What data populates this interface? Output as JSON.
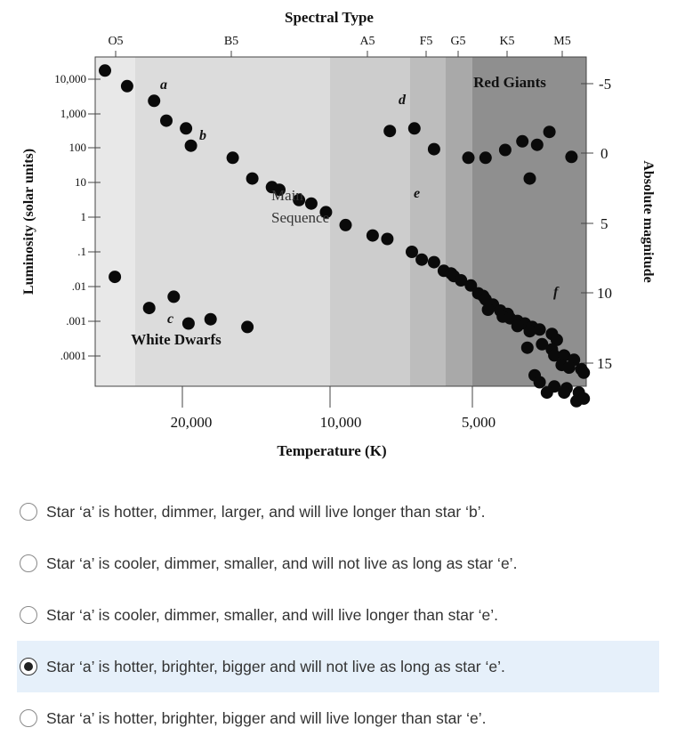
{
  "chart_data": {
    "type": "scatter",
    "title": "Spectral Type",
    "xlabel": "Temperature (K)",
    "ylabel": "Luminosity (solar units)",
    "y2label": "Absolute magnitude",
    "spectral_types": [
      "O5",
      "B5",
      "A5",
      "F5",
      "G5",
      "K5",
      "M5"
    ],
    "temperature_ticks": [
      "20,000",
      "10,000",
      "5,000"
    ],
    "luminosity_ticks": [
      "10,000",
      "1,000",
      "100",
      "10",
      "1",
      ".1",
      ".01",
      ".001",
      ".0001"
    ],
    "magnitude_ticks": [
      "-5",
      "0",
      "5",
      "10",
      "15"
    ],
    "band_colors": [
      "#e8e8e8",
      "#dcdcdc",
      "#cdcdcd",
      "#bdbdbd",
      "#a9a9a9",
      "#8f8f8f"
    ],
    "regions": [
      "Red Giants",
      "Main Sequence",
      "White Dwarfs"
    ],
    "star_labels": [
      "a",
      "b",
      "c",
      "d",
      "e",
      "f"
    ],
    "points": [
      {
        "x": 0.02,
        "y": -0.05
      },
      {
        "x": 0.065,
        "y": 0.04
      },
      {
        "x": 0.12,
        "y": 0.125
      },
      {
        "x": 0.145,
        "y": 0.24
      },
      {
        "x": 0.185,
        "y": 0.285
      },
      {
        "x": 0.195,
        "y": 0.385
      },
      {
        "x": 0.28,
        "y": 0.455
      },
      {
        "x": 0.32,
        "y": 0.575
      },
      {
        "x": 0.36,
        "y": 0.625
      },
      {
        "x": 0.375,
        "y": 0.64
      },
      {
        "x": 0.415,
        "y": 0.7
      },
      {
        "x": 0.44,
        "y": 0.72
      },
      {
        "x": 0.47,
        "y": 0.77
      },
      {
        "x": 0.51,
        "y": 0.845
      },
      {
        "x": 0.565,
        "y": 0.905
      },
      {
        "x": 0.595,
        "y": 0.925
      },
      {
        "x": 0.645,
        "y": 1.0
      },
      {
        "x": 0.665,
        "y": 1.045
      },
      {
        "x": 0.69,
        "y": 1.06
      },
      {
        "x": 0.71,
        "y": 1.11
      },
      {
        "x": 0.725,
        "y": 1.125
      },
      {
        "x": 0.73,
        "y": 1.14
      },
      {
        "x": 0.745,
        "y": 1.165
      },
      {
        "x": 0.765,
        "y": 1.195
      },
      {
        "x": 0.78,
        "y": 1.24
      },
      {
        "x": 0.79,
        "y": 1.255
      },
      {
        "x": 0.795,
        "y": 1.275
      },
      {
        "x": 0.81,
        "y": 1.305
      },
      {
        "x": 0.8,
        "y": 1.335
      },
      {
        "x": 0.825,
        "y": 1.34
      },
      {
        "x": 0.84,
        "y": 1.36
      },
      {
        "x": 0.83,
        "y": 1.375
      },
      {
        "x": 0.845,
        "y": 1.385
      },
      {
        "x": 0.86,
        "y": 1.4
      },
      {
        "x": 0.875,
        "y": 1.415
      },
      {
        "x": 0.86,
        "y": 1.43
      },
      {
        "x": 0.89,
        "y": 1.435
      },
      {
        "x": 0.885,
        "y": 1.46
      },
      {
        "x": 0.905,
        "y": 1.45
      },
      {
        "x": 0.93,
        "y": 1.475
      },
      {
        "x": 0.94,
        "y": 1.51
      },
      {
        "x": 0.91,
        "y": 1.535
      },
      {
        "x": 0.88,
        "y": 1.555
      },
      {
        "x": 0.93,
        "y": 1.565
      },
      {
        "x": 0.935,
        "y": 1.6
      },
      {
        "x": 0.955,
        "y": 1.6
      },
      {
        "x": 0.975,
        "y": 1.625
      },
      {
        "x": 0.95,
        "y": 1.655
      },
      {
        "x": 0.965,
        "y": 1.67
      },
      {
        "x": 0.99,
        "y": 1.68
      },
      {
        "x": 0.995,
        "y": 1.7
      },
      {
        "x": 0.895,
        "y": 1.715
      },
      {
        "x": 0.905,
        "y": 1.755
      },
      {
        "x": 0.935,
        "y": 1.78
      },
      {
        "x": 0.96,
        "y": 1.79
      },
      {
        "x": 0.985,
        "y": 1.815
      },
      {
        "x": 0.955,
        "y": 1.815
      },
      {
        "x": 0.92,
        "y": 1.815
      },
      {
        "x": 0.98,
        "y": 1.865
      },
      {
        "x": 0.995,
        "y": 1.85
      },
      {
        "x": 0.65,
        "y": 0.285
      },
      {
        "x": 0.6,
        "y": 0.3
      },
      {
        "x": 0.69,
        "y": 0.405
      },
      {
        "x": 0.76,
        "y": 0.455
      },
      {
        "x": 0.795,
        "y": 0.455
      },
      {
        "x": 0.835,
        "y": 0.41
      },
      {
        "x": 0.87,
        "y": 0.36
      },
      {
        "x": 0.9,
        "y": 0.38
      },
      {
        "x": 0.925,
        "y": 0.305
      },
      {
        "x": 0.97,
        "y": 0.45
      },
      {
        "x": 0.885,
        "y": 0.575
      },
      {
        "x": 0.04,
        "y": 1.145
      },
      {
        "x": 0.16,
        "y": 1.26
      },
      {
        "x": 0.11,
        "y": 1.325
      },
      {
        "x": 0.235,
        "y": 1.39
      },
      {
        "x": 0.19,
        "y": 1.415
      },
      {
        "x": 0.31,
        "y": 1.435
      }
    ]
  },
  "options": [
    {
      "text": "Star ‘a’ is hotter, dimmer, larger, and will live longer than star ‘b’.",
      "selected": false
    },
    {
      "text": "Star ‘a’ is cooler, dimmer, smaller, and will not live as long as star ‘e’.",
      "selected": false
    },
    {
      "text": "Star ‘a’ is cooler, dimmer, smaller, and will live longer than star ‘e’.",
      "selected": false
    },
    {
      "text": "Star ‘a’ is hotter, brighter, bigger and will not live as long as star ‘e’.",
      "selected": true
    },
    {
      "text": "Star ‘a’ is hotter, brighter, bigger and will live longer than star ‘e’.",
      "selected": false
    }
  ]
}
